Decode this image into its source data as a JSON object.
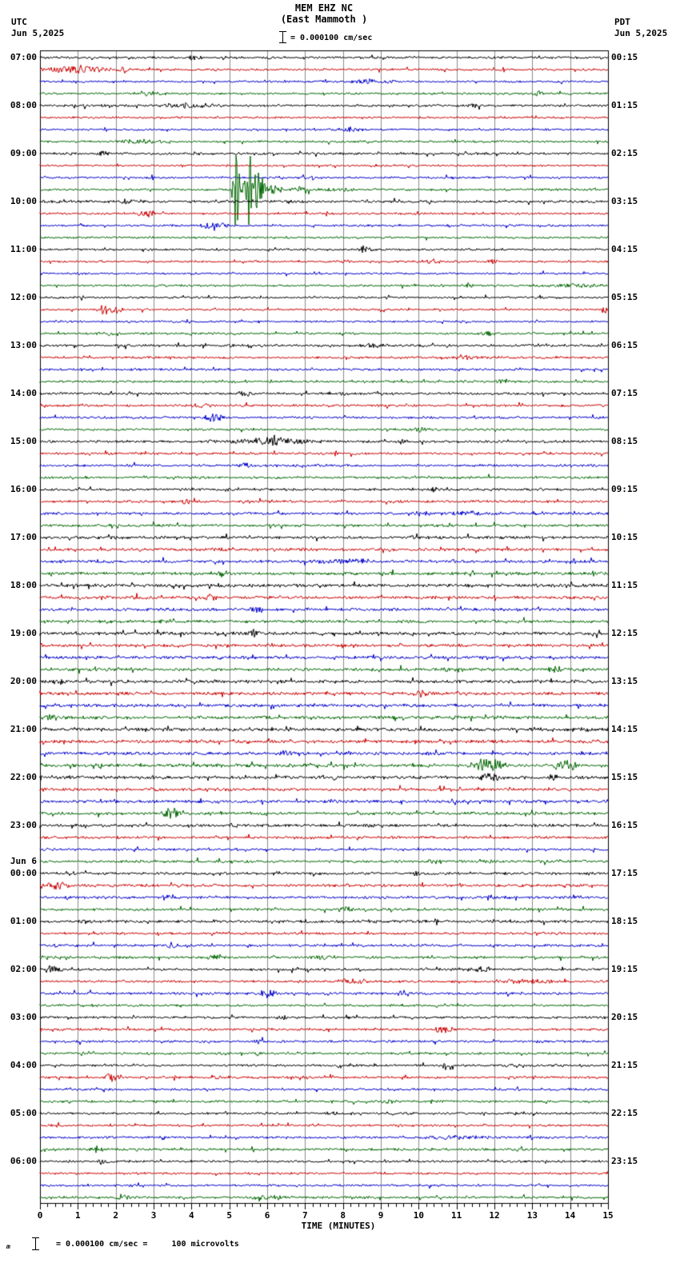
{
  "header": {
    "station": "MEM EHZ NC",
    "location": "(East Mammoth )",
    "scale_label": "= 0.000100 cm/sec",
    "left_tz": "UTC",
    "left_date": "Jun 5,2025",
    "right_tz": "PDT",
    "right_date": "Jun 5,2025"
  },
  "footer": {
    "prefix": "m",
    "note": "= 0.000100 cm/sec =     100 microvolts"
  },
  "x_axis": {
    "label": "TIME (MINUTES)",
    "ticks": [
      "0",
      "1",
      "2",
      "3",
      "4",
      "5",
      "6",
      "7",
      "8",
      "9",
      "10",
      "11",
      "12",
      "13",
      "14",
      "15"
    ]
  },
  "left_labels": [
    {
      "row": 0,
      "text": "07:00"
    },
    {
      "row": 4,
      "text": "08:00"
    },
    {
      "row": 8,
      "text": "09:00"
    },
    {
      "row": 12,
      "text": "10:00"
    },
    {
      "row": 16,
      "text": "11:00"
    },
    {
      "row": 20,
      "text": "12:00"
    },
    {
      "row": 24,
      "text": "13:00"
    },
    {
      "row": 28,
      "text": "14:00"
    },
    {
      "row": 32,
      "text": "15:00"
    },
    {
      "row": 36,
      "text": "16:00"
    },
    {
      "row": 40,
      "text": "17:00"
    },
    {
      "row": 44,
      "text": "18:00"
    },
    {
      "row": 48,
      "text": "19:00"
    },
    {
      "row": 52,
      "text": "20:00"
    },
    {
      "row": 56,
      "text": "21:00"
    },
    {
      "row": 60,
      "text": "22:00"
    },
    {
      "row": 64,
      "text": "23:00"
    },
    {
      "row": 68,
      "text": "00:00",
      "date": "Jun 6"
    },
    {
      "row": 72,
      "text": "01:00"
    },
    {
      "row": 76,
      "text": "02:00"
    },
    {
      "row": 80,
      "text": "03:00"
    },
    {
      "row": 84,
      "text": "04:00"
    },
    {
      "row": 88,
      "text": "05:00"
    },
    {
      "row": 92,
      "text": "06:00"
    }
  ],
  "right_labels": [
    {
      "row": 0,
      "text": "00:15"
    },
    {
      "row": 4,
      "text": "01:15"
    },
    {
      "row": 8,
      "text": "02:15"
    },
    {
      "row": 12,
      "text": "03:15"
    },
    {
      "row": 16,
      "text": "04:15"
    },
    {
      "row": 20,
      "text": "05:15"
    },
    {
      "row": 24,
      "text": "06:15"
    },
    {
      "row": 28,
      "text": "07:15"
    },
    {
      "row": 32,
      "text": "08:15"
    },
    {
      "row": 36,
      "text": "09:15"
    },
    {
      "row": 40,
      "text": "10:15"
    },
    {
      "row": 44,
      "text": "11:15"
    },
    {
      "row": 48,
      "text": "12:15"
    },
    {
      "row": 52,
      "text": "13:15"
    },
    {
      "row": 56,
      "text": "14:15"
    },
    {
      "row": 60,
      "text": "15:15"
    },
    {
      "row": 64,
      "text": "16:15"
    },
    {
      "row": 68,
      "text": "17:15"
    },
    {
      "row": 72,
      "text": "18:15"
    },
    {
      "row": 76,
      "text": "19:15"
    },
    {
      "row": 80,
      "text": "20:15"
    },
    {
      "row": 84,
      "text": "21:15"
    },
    {
      "row": 88,
      "text": "22:15"
    },
    {
      "row": 92,
      "text": "23:15"
    }
  ],
  "chart_data": {
    "type": "line",
    "title": "MEM EHZ NC (East Mammoth )",
    "xlabel": "TIME (MINUTES)",
    "x_range": [
      0,
      15
    ],
    "minutes_per_row": 15,
    "rows_total": 96,
    "start_utc": "Jun 5,2025 07:00 UTC",
    "end_utc": "Jun 6,2025 07:00 UTC",
    "amplitude_scale": "0.000100 cm/sec = 100 microvolts",
    "grid_color": "#8b8b8b",
    "color_cycle": [
      "black",
      "red",
      "blue",
      "green"
    ],
    "palette": {
      "black": "#000000",
      "red": "#cc0000",
      "blue": "#0000cc",
      "green": "#006600"
    },
    "rows": [
      {
        "t": "07:00",
        "n": 1.4,
        "ev": [
          [
            3.9,
            4.3,
            3
          ],
          [
            5.9,
            6.2,
            3
          ]
        ]
      },
      {
        "t": "07:15",
        "n": 1.3,
        "ev": [
          [
            0.0,
            1.9,
            5
          ],
          [
            2.0,
            2.4,
            4
          ]
        ]
      },
      {
        "t": "07:30",
        "n": 1.2,
        "ev": [
          [
            8.0,
            9.5,
            2.5
          ]
        ]
      },
      {
        "t": "07:45",
        "n": 1.2,
        "ev": [
          [
            2.3,
            3.4,
            2.5
          ],
          [
            13.0,
            13.3,
            4
          ]
        ]
      },
      {
        "t": "08:00",
        "n": 1.4,
        "ev": [
          [
            3.3,
            4.6,
            3.5
          ],
          [
            11.3,
            11.7,
            3
          ]
        ]
      },
      {
        "t": "08:15",
        "n": 1.2,
        "ev": []
      },
      {
        "t": "08:30",
        "n": 1.2,
        "ev": [
          [
            7.8,
            8.6,
            3
          ]
        ]
      },
      {
        "t": "08:45",
        "n": 1.3,
        "ev": [
          [
            2.0,
            3.2,
            2.5
          ]
        ]
      },
      {
        "t": "09:00",
        "n": 1.4,
        "ev": [
          [
            1.5,
            1.9,
            3
          ]
        ]
      },
      {
        "t": "09:15",
        "n": 1.2,
        "ev": []
      },
      {
        "t": "09:30",
        "n": 1.2,
        "ev": [
          [
            6.9,
            7.3,
            3
          ]
        ]
      },
      {
        "t": "09:45",
        "n": 1.3,
        "ev": [
          [
            5.05,
            5.3,
            45
          ],
          [
            5.3,
            5.45,
            20
          ],
          [
            5.45,
            5.6,
            50
          ],
          [
            5.6,
            5.95,
            28
          ],
          [
            5.95,
            6.4,
            8
          ],
          [
            6.6,
            7.3,
            4
          ],
          [
            7.3,
            8.5,
            2.5
          ]
        ]
      },
      {
        "t": "10:00",
        "n": 1.6,
        "ev": [
          [
            2.1,
            2.5,
            3
          ]
        ]
      },
      {
        "t": "10:15",
        "n": 1.3,
        "ev": [
          [
            2.6,
            3.1,
            4
          ]
        ]
      },
      {
        "t": "10:30",
        "n": 1.3,
        "ev": [
          [
            4.2,
            5.0,
            4
          ]
        ]
      },
      {
        "t": "10:45",
        "n": 1.2,
        "ev": []
      },
      {
        "t": "11:00",
        "n": 1.3,
        "ev": [
          [
            8.4,
            8.8,
            5
          ]
        ]
      },
      {
        "t": "11:15",
        "n": 1.2,
        "ev": [
          [
            10.2,
            10.6,
            3
          ],
          [
            11.8,
            12.1,
            3
          ]
        ]
      },
      {
        "t": "11:30",
        "n": 1.2,
        "ev": []
      },
      {
        "t": "11:45",
        "n": 1.3,
        "ev": [
          [
            11.2,
            11.5,
            4
          ],
          [
            13.0,
            15.0,
            2.2
          ]
        ]
      },
      {
        "t": "12:00",
        "n": 1.3,
        "ev": []
      },
      {
        "t": "12:15",
        "n": 1.3,
        "ev": [
          [
            1.5,
            2.2,
            7
          ],
          [
            14.8,
            15.0,
            5
          ]
        ]
      },
      {
        "t": "12:30",
        "n": 1.2,
        "ev": []
      },
      {
        "t": "12:45",
        "n": 1.3,
        "ev": [
          [
            1.5,
            2.0,
            2.5
          ],
          [
            11.6,
            12.0,
            3
          ]
        ]
      },
      {
        "t": "13:00",
        "n": 1.5,
        "ev": [
          [
            8.3,
            9.2,
            2.5
          ]
        ]
      },
      {
        "t": "13:15",
        "n": 1.4,
        "ev": [
          [
            11.0,
            11.4,
            3
          ]
        ]
      },
      {
        "t": "13:30",
        "n": 1.4,
        "ev": []
      },
      {
        "t": "13:45",
        "n": 1.4,
        "ev": [
          [
            12.0,
            12.4,
            3
          ]
        ]
      },
      {
        "t": "14:00",
        "n": 1.5,
        "ev": [
          [
            5.2,
            5.6,
            4
          ],
          [
            7.9,
            8.2,
            3
          ]
        ]
      },
      {
        "t": "14:15",
        "n": 1.4,
        "ev": [
          [
            4.0,
            4.6,
            3
          ]
        ]
      },
      {
        "t": "14:30",
        "n": 1.4,
        "ev": [
          [
            4.3,
            4.9,
            5
          ]
        ]
      },
      {
        "t": "14:45",
        "n": 1.4,
        "ev": [
          [
            9.8,
            10.2,
            3
          ]
        ]
      },
      {
        "t": "15:00",
        "n": 1.5,
        "ev": [
          [
            4.4,
            7.6,
            3
          ],
          [
            5.4,
            6.6,
            6
          ],
          [
            9.4,
            9.7,
            4
          ]
        ]
      },
      {
        "t": "15:15",
        "n": 1.4,
        "ev": []
      },
      {
        "t": "15:30",
        "n": 1.5,
        "ev": [
          [
            5.2,
            5.6,
            4
          ]
        ]
      },
      {
        "t": "15:45",
        "n": 1.4,
        "ev": []
      },
      {
        "t": "16:00",
        "n": 1.5,
        "ev": [
          [
            10.3,
            10.5,
            5
          ]
        ]
      },
      {
        "t": "16:15",
        "n": 1.5,
        "ev": [
          [
            3.7,
            4.0,
            4
          ]
        ]
      },
      {
        "t": "16:30",
        "n": 1.6,
        "ev": [
          [
            9.9,
            10.4,
            4
          ],
          [
            10.4,
            12.0,
            2.5
          ]
        ]
      },
      {
        "t": "16:45",
        "n": 1.6,
        "ev": []
      },
      {
        "t": "17:00",
        "n": 1.8,
        "ev": [
          [
            9.8,
            10.1,
            4
          ]
        ]
      },
      {
        "t": "17:15",
        "n": 1.8,
        "ev": [
          [
            4.6,
            5.0,
            3
          ]
        ]
      },
      {
        "t": "17:30",
        "n": 1.8,
        "ev": [
          [
            7.0,
            9.0,
            2.5
          ],
          [
            13.9,
            14.3,
            4
          ]
        ]
      },
      {
        "t": "17:45",
        "n": 1.8,
        "ev": [
          [
            4.5,
            5.0,
            4
          ]
        ]
      },
      {
        "t": "18:00",
        "n": 2.0,
        "ev": []
      },
      {
        "t": "18:15",
        "n": 1.8,
        "ev": [
          [
            4.3,
            4.7,
            4
          ]
        ]
      },
      {
        "t": "18:30",
        "n": 1.8,
        "ev": [
          [
            5.5,
            5.9,
            4
          ]
        ]
      },
      {
        "t": "18:45",
        "n": 1.8,
        "ev": []
      },
      {
        "t": "19:00",
        "n": 1.9,
        "ev": [
          [
            5.5,
            5.8,
            5
          ]
        ]
      },
      {
        "t": "19:15",
        "n": 1.8,
        "ev": []
      },
      {
        "t": "19:30",
        "n": 1.8,
        "ev": []
      },
      {
        "t": "19:45",
        "n": 1.9,
        "ev": [
          [
            10.6,
            10.9,
            3
          ],
          [
            13.4,
            13.8,
            4
          ]
        ]
      },
      {
        "t": "20:00",
        "n": 2.0,
        "ev": [
          [
            0.3,
            0.7,
            3
          ]
        ]
      },
      {
        "t": "20:15",
        "n": 1.9,
        "ev": [
          [
            9.9,
            10.3,
            5
          ],
          [
            11.0,
            11.3,
            3
          ]
        ]
      },
      {
        "t": "20:30",
        "n": 1.9,
        "ev": []
      },
      {
        "t": "20:45",
        "n": 2.0,
        "ev": [
          [
            0.1,
            0.5,
            4
          ]
        ]
      },
      {
        "t": "21:00",
        "n": 2.0,
        "ev": [
          [
            14.2,
            14.6,
            3
          ]
        ]
      },
      {
        "t": "21:15",
        "n": 1.9,
        "ev": [
          [
            5.3,
            5.6,
            4
          ]
        ]
      },
      {
        "t": "21:30",
        "n": 1.9,
        "ev": [
          [
            6.3,
            6.8,
            4
          ]
        ]
      },
      {
        "t": "21:45",
        "n": 2.0,
        "ev": [
          [
            1.4,
            1.7,
            4
          ],
          [
            11.4,
            12.3,
            9
          ],
          [
            13.5,
            14.2,
            6
          ]
        ]
      },
      {
        "t": "22:00",
        "n": 1.9,
        "ev": [
          [
            11.6,
            12.3,
            5
          ],
          [
            13.4,
            13.7,
            4
          ]
        ]
      },
      {
        "t": "22:15",
        "n": 1.8,
        "ev": [
          [
            2.9,
            3.2,
            4
          ]
        ]
      },
      {
        "t": "22:30",
        "n": 1.8,
        "ev": [
          [
            10.8,
            11.2,
            4
          ]
        ]
      },
      {
        "t": "22:45",
        "n": 1.8,
        "ev": [
          [
            3.2,
            3.8,
            7
          ]
        ]
      },
      {
        "t": "23:00",
        "n": 1.8,
        "ev": [
          [
            8.5,
            8.8,
            4
          ]
        ]
      },
      {
        "t": "23:15",
        "n": 1.6,
        "ev": []
      },
      {
        "t": "23:30",
        "n": 1.5,
        "ev": []
      },
      {
        "t": "23:45",
        "n": 1.6,
        "ev": [
          [
            10.2,
            10.6,
            3
          ],
          [
            11.7,
            12.0,
            3
          ]
        ]
      },
      {
        "t": "00:00",
        "n": 1.6,
        "ev": [
          [
            9.7,
            10.1,
            3
          ]
        ]
      },
      {
        "t": "00:15",
        "n": 1.7,
        "ev": [
          [
            0.2,
            0.8,
            5
          ]
        ]
      },
      {
        "t": "00:30",
        "n": 1.6,
        "ev": [
          [
            3.2,
            3.6,
            4
          ],
          [
            11.7,
            12.1,
            3
          ]
        ]
      },
      {
        "t": "00:45",
        "n": 1.6,
        "ev": [
          [
            7.9,
            8.3,
            3
          ]
        ]
      },
      {
        "t": "01:00",
        "n": 1.6,
        "ev": [
          [
            1.0,
            1.4,
            4
          ]
        ]
      },
      {
        "t": "01:15",
        "n": 1.5,
        "ev": []
      },
      {
        "t": "01:30",
        "n": 1.5,
        "ev": [
          [
            3.3,
            3.7,
            4
          ]
        ]
      },
      {
        "t": "01:45",
        "n": 1.5,
        "ev": [
          [
            4.4,
            5.0,
            3
          ],
          [
            7.0,
            8.0,
            2.5
          ]
        ]
      },
      {
        "t": "02:00",
        "n": 1.5,
        "ev": [
          [
            0.1,
            0.6,
            5
          ],
          [
            11.3,
            12.0,
            3
          ]
        ]
      },
      {
        "t": "02:15",
        "n": 1.4,
        "ev": [
          [
            7.8,
            8.8,
            3
          ],
          [
            12.0,
            14.0,
            2.5
          ]
        ]
      },
      {
        "t": "02:30",
        "n": 1.5,
        "ev": [
          [
            5.8,
            6.3,
            6
          ],
          [
            9.4,
            9.8,
            4
          ]
        ]
      },
      {
        "t": "02:45",
        "n": 1.4,
        "ev": []
      },
      {
        "t": "03:00",
        "n": 1.4,
        "ev": [
          [
            6.2,
            6.6,
            3
          ]
        ]
      },
      {
        "t": "03:15",
        "n": 1.4,
        "ev": [
          [
            10.4,
            10.9,
            5
          ]
        ]
      },
      {
        "t": "03:30",
        "n": 1.4,
        "ev": [
          [
            5.6,
            6.0,
            3
          ]
        ]
      },
      {
        "t": "03:45",
        "n": 1.4,
        "ev": [
          [
            5.6,
            5.9,
            3
          ]
        ]
      },
      {
        "t": "04:00",
        "n": 1.4,
        "ev": [
          [
            10.6,
            11.0,
            6
          ]
        ]
      },
      {
        "t": "04:15",
        "n": 1.4,
        "ev": [
          [
            1.7,
            2.2,
            5
          ],
          [
            4.5,
            4.9,
            3
          ]
        ]
      },
      {
        "t": "04:30",
        "n": 1.3,
        "ev": []
      },
      {
        "t": "04:45",
        "n": 1.4,
        "ev": [
          [
            9.0,
            9.4,
            3
          ]
        ]
      },
      {
        "t": "05:00",
        "n": 1.4,
        "ev": [
          [
            7.5,
            7.9,
            3
          ]
        ]
      },
      {
        "t": "05:15",
        "n": 1.3,
        "ev": []
      },
      {
        "t": "05:30",
        "n": 1.4,
        "ev": [
          [
            10.0,
            12.0,
            2.2
          ]
        ]
      },
      {
        "t": "05:45",
        "n": 1.5,
        "ev": [
          [
            1.3,
            1.7,
            5
          ]
        ]
      },
      {
        "t": "06:00",
        "n": 1.4,
        "ev": [
          [
            1.5,
            1.9,
            4
          ]
        ]
      },
      {
        "t": "06:15",
        "n": 1.3,
        "ev": []
      },
      {
        "t": "06:30",
        "n": 1.3,
        "ev": []
      },
      {
        "t": "06:45",
        "n": 1.4,
        "ev": [
          [
            2.0,
            2.4,
            4
          ],
          [
            5.5,
            6.5,
            3
          ]
        ]
      }
    ]
  }
}
